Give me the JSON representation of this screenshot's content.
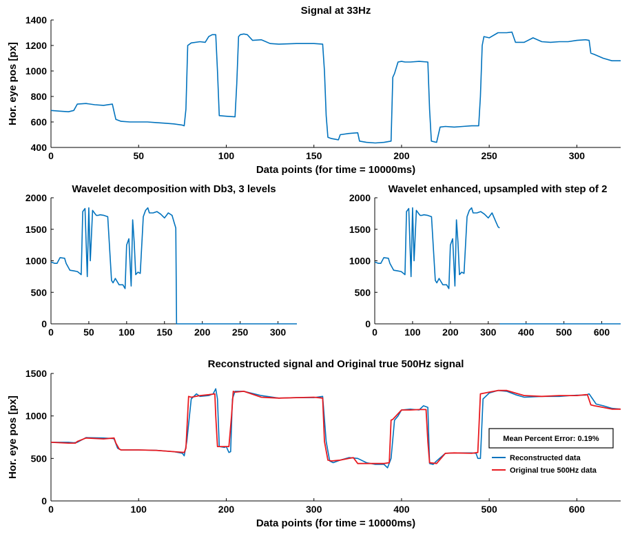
{
  "colors": {
    "reconstructed": "#0072BD",
    "original": "#E8191F",
    "axis": "#000000"
  },
  "chart_data": [
    {
      "type": "line",
      "title": "Signal at 33Hz",
      "xlabel": "Data points (for time = 10000ms)",
      "ylabel": "Hor. eye pos [px]",
      "xlim": [
        0,
        325
      ],
      "ylim": [
        400,
        1400
      ],
      "xticks": [
        0,
        50,
        100,
        150,
        200,
        250,
        300
      ],
      "yticks": [
        400,
        600,
        800,
        1000,
        1200,
        1400
      ],
      "series": [
        {
          "x": [
            0,
            5,
            10,
            13,
            15,
            20,
            25,
            30,
            35,
            36,
            37,
            40,
            45,
            50,
            55,
            60,
            65,
            70,
            75,
            76,
            77,
            78,
            80,
            85,
            88,
            90,
            92,
            94,
            95,
            96,
            100,
            105,
            106,
            107,
            108,
            110,
            112,
            115,
            120,
            125,
            130,
            140,
            150,
            155,
            156,
            157,
            158,
            160,
            164,
            165,
            170,
            175,
            176,
            180,
            185,
            190,
            194,
            195,
            196,
            198,
            200,
            202,
            205,
            210,
            215,
            216,
            217,
            220,
            222,
            225,
            230,
            235,
            240,
            244,
            245,
            246,
            247,
            250,
            255,
            260,
            263,
            265,
            270,
            275,
            280,
            285,
            290,
            295,
            300,
            305,
            307,
            308,
            310,
            315,
            320,
            325
          ],
          "y": [
            690,
            685,
            680,
            690,
            740,
            745,
            735,
            730,
            740,
            680,
            620,
            605,
            600,
            600,
            600,
            595,
            590,
            585,
            575,
            570,
            700,
            1200,
            1220,
            1230,
            1225,
            1270,
            1285,
            1285,
            1000,
            650,
            645,
            640,
            900,
            1270,
            1285,
            1290,
            1285,
            1240,
            1245,
            1215,
            1210,
            1215,
            1215,
            1210,
            1000,
            650,
            480,
            470,
            460,
            500,
            510,
            515,
            450,
            440,
            435,
            440,
            450,
            950,
            980,
            1070,
            1075,
            1070,
            1070,
            1075,
            1070,
            700,
            450,
            440,
            560,
            565,
            560,
            565,
            570,
            570,
            800,
            1200,
            1270,
            1260,
            1300,
            1300,
            1305,
            1225,
            1225,
            1260,
            1230,
            1225,
            1230,
            1230,
            1240,
            1245,
            1240,
            1140,
            1130,
            1100,
            1080,
            1080
          ]
        }
      ]
    },
    {
      "type": "line",
      "title": "Wavelet decomposition with Db3, 3 levels",
      "xlabel": "",
      "ylabel": "",
      "xlim": [
        0,
        325
      ],
      "ylim": [
        0,
        2000
      ],
      "xticks": [
        0,
        50,
        100,
        150,
        200,
        250,
        300
      ],
      "yticks": [
        0,
        500,
        1000,
        1500,
        2000
      ],
      "series": [
        {
          "x": [
            0,
            5,
            8,
            12,
            18,
            20,
            25,
            30,
            35,
            38,
            40,
            42,
            45,
            48,
            50,
            52,
            55,
            58,
            60,
            62,
            65,
            70,
            75,
            80,
            82,
            85,
            90,
            95,
            98,
            100,
            103,
            106,
            108,
            110,
            112,
            115,
            118,
            122,
            125,
            128,
            130,
            135,
            140,
            145,
            150,
            155,
            160,
            163,
            165,
            166,
            170,
            200,
            250,
            300,
            325
          ],
          "y": [
            980,
            960,
            960,
            1050,
            1040,
            960,
            850,
            840,
            830,
            800,
            780,
            1780,
            1830,
            750,
            1840,
            1000,
            1800,
            1750,
            1720,
            1720,
            1730,
            1720,
            1700,
            690,
            650,
            720,
            620,
            620,
            560,
            1250,
            1350,
            600,
            1650,
            1300,
            780,
            820,
            800,
            1700,
            1800,
            1840,
            1760,
            1760,
            1780,
            1740,
            1680,
            1760,
            1720,
            1600,
            1520,
            0,
            0,
            0,
            0,
            0,
            0
          ]
        }
      ]
    },
    {
      "type": "line",
      "title": "Wavelet enhanced, upsampled with step of 2",
      "xlabel": "",
      "ylabel": "",
      "xlim": [
        0,
        650
      ],
      "ylim": [
        0,
        2000
      ],
      "xticks": [
        0,
        100,
        200,
        300,
        400,
        500,
        600
      ],
      "yticks": [
        0,
        500,
        1000,
        1500,
        2000
      ],
      "series": [
        {
          "x": [
            0,
            10,
            16,
            24,
            36,
            40,
            50,
            60,
            70,
            76,
            80,
            84,
            90,
            96,
            100,
            104,
            110,
            116,
            120,
            124,
            130,
            140,
            150,
            160,
            164,
            170,
            180,
            190,
            196,
            200,
            206,
            212,
            216,
            220,
            224,
            230,
            236,
            244,
            250,
            256,
            260,
            270,
            280,
            290,
            300,
            310,
            320,
            326,
            330
          ],
          "y": [
            980,
            960,
            960,
            1050,
            1040,
            960,
            850,
            840,
            830,
            800,
            780,
            1780,
            1830,
            750,
            1840,
            1000,
            1800,
            1750,
            1720,
            1720,
            1730,
            1720,
            1700,
            690,
            650,
            720,
            620,
            620,
            560,
            1250,
            1350,
            600,
            1650,
            1300,
            780,
            820,
            800,
            1700,
            1800,
            1840,
            1760,
            1760,
            1780,
            1740,
            1680,
            1760,
            1620,
            1540,
            1520
          ]
        },
        {
          "x": [
            330,
            400,
            500,
            600,
            650
          ],
          "y": [
            0,
            0,
            0,
            0,
            0
          ]
        }
      ]
    },
    {
      "type": "line",
      "title": "Reconstructed signal and Original true 500Hz signal",
      "xlabel": "Data points (for time = 10000ms)",
      "ylabel": "Hor. eye pos [px]",
      "xlim": [
        0,
        650
      ],
      "ylim": [
        0,
        1500
      ],
      "xticks": [
        0,
        100,
        200,
        300,
        400,
        500,
        600
      ],
      "yticks": [
        0,
        500,
        1000,
        1500
      ],
      "annotation": "Mean Percent Error: 0.19%",
      "legend_position": "right",
      "series": [
        {
          "name": "Reconstructed data",
          "x": [
            0,
            20,
            26,
            30,
            40,
            60,
            70,
            72,
            76,
            80,
            100,
            120,
            140,
            150,
            152,
            155,
            160,
            166,
            170,
            180,
            185,
            188,
            190,
            192,
            198,
            200,
            203,
            205,
            207,
            210,
            220,
            240,
            260,
            280,
            300,
            310,
            314,
            318,
            322,
            330,
            340,
            350,
            360,
            370,
            380,
            384,
            388,
            392,
            396,
            400,
            410,
            420,
            425,
            430,
            432,
            436,
            440,
            450,
            460,
            470,
            480,
            485,
            487,
            490,
            493,
            500,
            510,
            520,
            530,
            540,
            560,
            580,
            600,
            610,
            614,
            618,
            622,
            630,
            640,
            650
          ],
          "y": [
            690,
            690,
            685,
            690,
            745,
            740,
            735,
            730,
            620,
            600,
            600,
            595,
            580,
            560,
            530,
            700,
            1200,
            1260,
            1230,
            1240,
            1260,
            1320,
            1200,
            640,
            630,
            640,
            570,
            580,
            1200,
            1290,
            1290,
            1240,
            1210,
            1215,
            1215,
            1230,
            700,
            470,
            450,
            480,
            510,
            500,
            450,
            430,
            430,
            390,
            500,
            950,
            1000,
            1070,
            1080,
            1070,
            1120,
            1100,
            440,
            430,
            470,
            560,
            565,
            565,
            565,
            560,
            500,
            500,
            1200,
            1270,
            1300,
            1290,
            1250,
            1220,
            1230,
            1230,
            1245,
            1245,
            1260,
            1200,
            1140,
            1120,
            1090,
            1080
          ]
        },
        {
          "name": "Original true 500Hz data",
          "x": [
            0,
            20,
            28,
            30,
            40,
            60,
            72,
            74,
            78,
            80,
            100,
            120,
            140,
            152,
            154,
            157,
            160,
            170,
            180,
            187,
            188,
            190,
            200,
            203,
            206,
            208,
            210,
            220,
            240,
            260,
            280,
            300,
            310,
            312,
            316,
            320,
            330,
            340,
            345,
            350,
            360,
            370,
            380,
            386,
            388,
            390,
            400,
            410,
            420,
            428,
            430,
            432,
            440,
            450,
            460,
            480,
            487,
            488,
            490,
            500,
            510,
            520,
            540,
            560,
            580,
            600,
            610,
            612,
            616,
            620,
            630,
            640,
            650
          ],
          "y": [
            690,
            680,
            680,
            700,
            740,
            730,
            740,
            680,
            610,
            600,
            600,
            595,
            580,
            570,
            620,
            1230,
            1220,
            1240,
            1250,
            1260,
            1000,
            640,
            640,
            640,
            1000,
            1290,
            1280,
            1290,
            1220,
            1210,
            1215,
            1220,
            1210,
            700,
            480,
            470,
            480,
            500,
            510,
            440,
            440,
            440,
            440,
            450,
            950,
            960,
            1070,
            1070,
            1075,
            1075,
            700,
            450,
            440,
            560,
            565,
            560,
            570,
            800,
            1260,
            1280,
            1300,
            1300,
            1240,
            1230,
            1240,
            1240,
            1250,
            1250,
            1130,
            1120,
            1100,
            1080,
            1080
          ]
        }
      ]
    }
  ]
}
